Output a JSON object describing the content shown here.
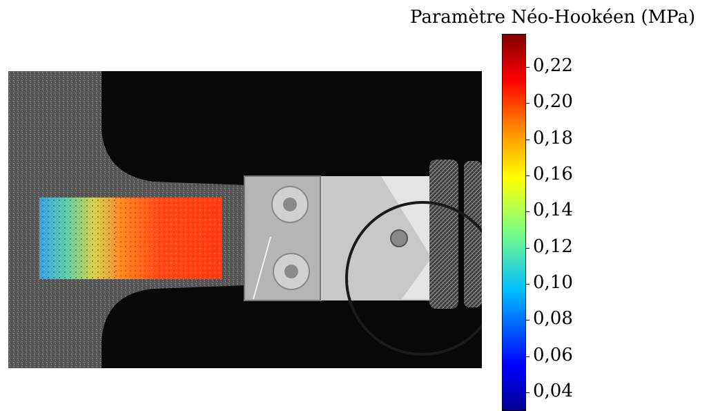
{
  "colorbar": {
    "title": "Paramètre Néo-Hookéen (MPa)",
    "ticks": [
      "0,22",
      "0,20",
      "0,18",
      "0,16",
      "0,14",
      "0,12",
      "0,10",
      "0,08",
      "0,06",
      "0,04"
    ],
    "tick_values": [
      0.22,
      0.2,
      0.18,
      0.16,
      0.14,
      0.12,
      0.1,
      0.08,
      0.06,
      0.04
    ],
    "range": [
      0.03,
      0.238
    ],
    "colormap": "jet",
    "colors": [
      "#00008f",
      "#0000ff",
      "#00bfff",
      "#7fff7f",
      "#ffff00",
      "#ff7f00",
      "#ff0000",
      "#7f0000"
    ]
  },
  "photo": {
    "description_shown": "grayscale photo of elastomer specimen in clamping fixture with color map overlay",
    "overlay_colormap": "jet"
  }
}
